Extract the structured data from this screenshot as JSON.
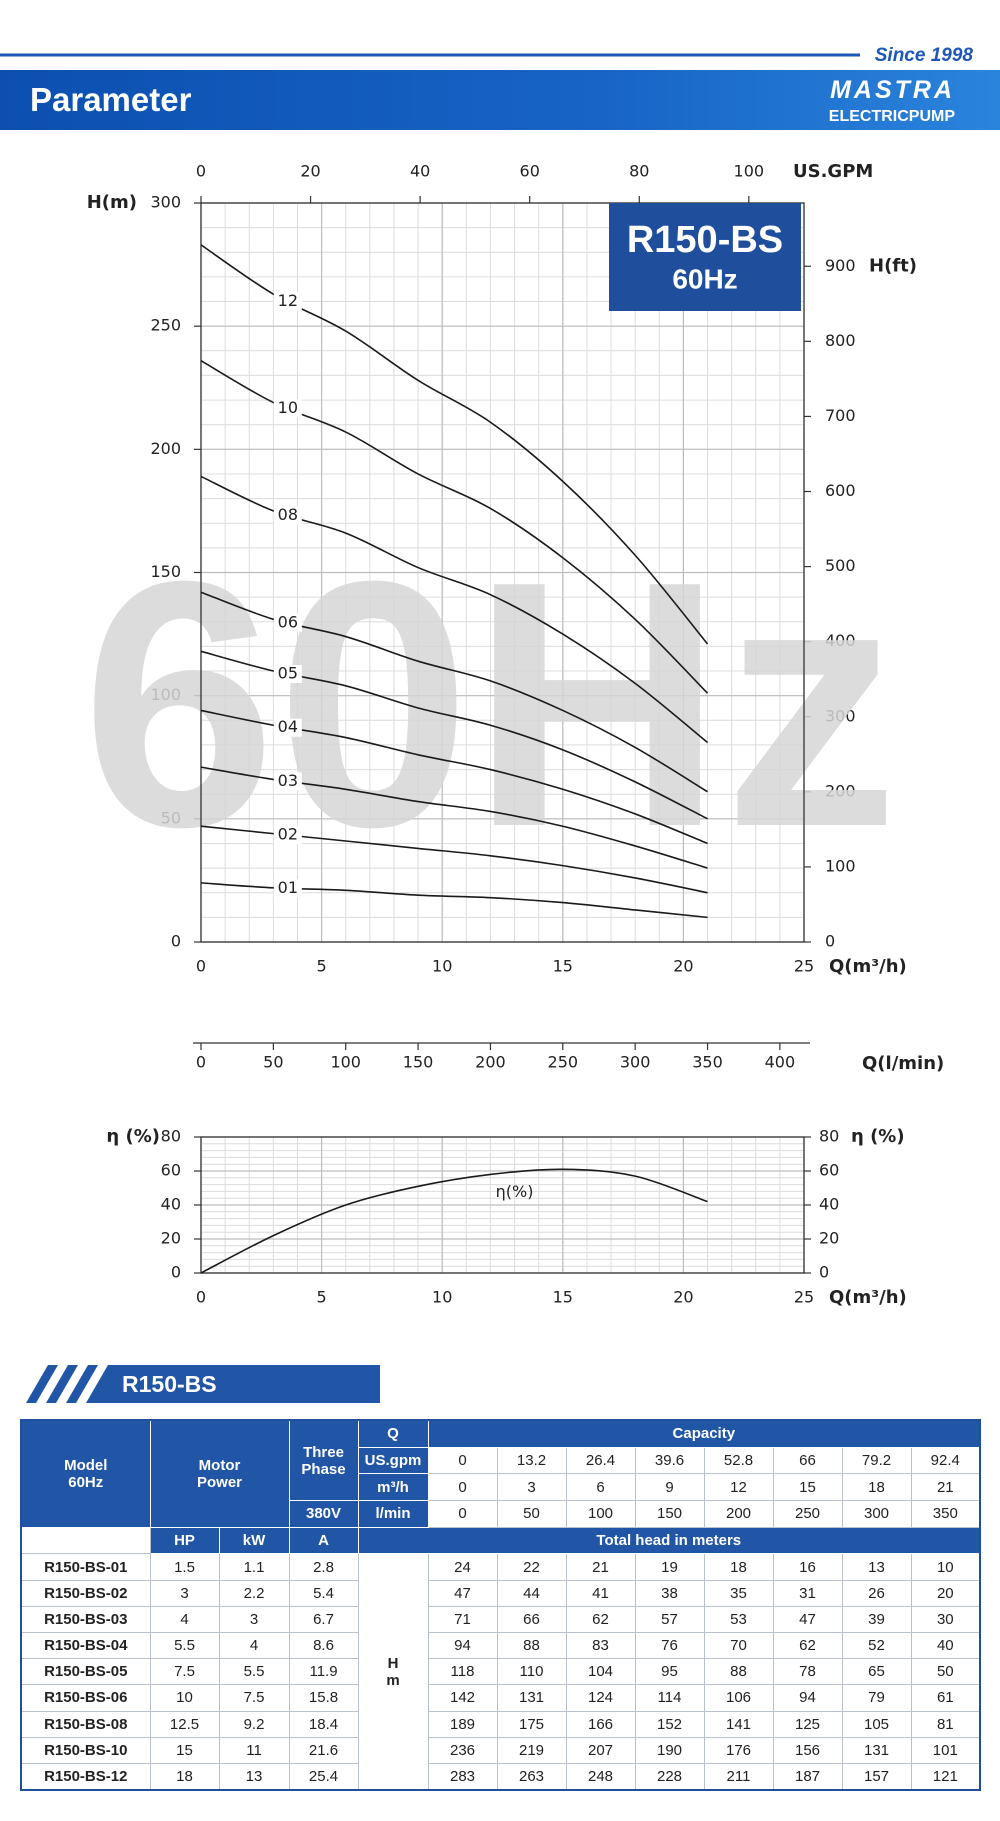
{
  "header": {
    "since": "Since 1998",
    "title": "Parameter",
    "brand": "MASTRA",
    "brand_sub": "ELECTRICPUMP"
  },
  "chart_data": [
    {
      "type": "line",
      "title": "R150-BS",
      "subtitle": "60Hz",
      "watermark": "60Hz",
      "xlabel": "Q(m³/h)",
      "ylabel": "H(m)",
      "y2label": "H(ft)",
      "x": [
        0,
        3,
        6,
        9,
        12,
        15,
        18,
        21
      ],
      "xlim": [
        0,
        25
      ],
      "xticks": [
        0,
        5,
        10,
        15,
        20,
        25
      ],
      "ylim": [
        0,
        300
      ],
      "yticks": [
        0,
        50,
        100,
        150,
        200,
        250,
        300
      ],
      "y2lim": [
        0,
        984.25
      ],
      "y2ticks": [
        0,
        100,
        200,
        300,
        400,
        500,
        600,
        700,
        800,
        900
      ],
      "x2label": "US.GPM",
      "x2lim": [
        0,
        110.07
      ],
      "x2ticks": [
        0,
        20,
        40,
        60,
        80,
        100
      ],
      "x3label": "Q(l/min)",
      "x3lim": [
        0,
        416.67
      ],
      "x3ticks": [
        0,
        50,
        100,
        150,
        200,
        250,
        300,
        350,
        400
      ],
      "grid": true,
      "series": [
        {
          "name": "01",
          "color": "#1a1a1a",
          "values": [
            24,
            22,
            21,
            19,
            18,
            16,
            13,
            10
          ]
        },
        {
          "name": "02",
          "color": "#1a1a1a",
          "values": [
            47,
            44,
            41,
            38,
            35,
            31,
            26,
            20
          ]
        },
        {
          "name": "03",
          "color": "#1a1a1a",
          "values": [
            71,
            66,
            62,
            57,
            53,
            47,
            39,
            30
          ]
        },
        {
          "name": "04",
          "color": "#1a1a1a",
          "values": [
            94,
            88,
            83,
            76,
            70,
            62,
            52,
            40
          ]
        },
        {
          "name": "05",
          "color": "#1a1a1a",
          "values": [
            118,
            110,
            104,
            95,
            88,
            78,
            65,
            50
          ]
        },
        {
          "name": "06",
          "color": "#1a1a1a",
          "values": [
            142,
            131,
            124,
            114,
            106,
            94,
            79,
            61
          ]
        },
        {
          "name": "08",
          "color": "#1a1a1a",
          "values": [
            189,
            175,
            166,
            152,
            141,
            125,
            105,
            81
          ]
        },
        {
          "name": "10",
          "color": "#1a1a1a",
          "values": [
            236,
            219,
            207,
            190,
            176,
            156,
            131,
            101
          ]
        },
        {
          "name": "12",
          "color": "#1a1a1a",
          "values": [
            283,
            263,
            248,
            228,
            211,
            187,
            157,
            121
          ]
        }
      ]
    },
    {
      "type": "line",
      "xlabel": "Q(m³/h)",
      "ylabel": "η (%)",
      "y2label": "η (%)",
      "x": [
        0,
        3,
        6,
        9,
        12,
        15,
        18,
        21
      ],
      "xlim": [
        0,
        25
      ],
      "xticks": [
        0,
        5,
        10,
        15,
        20,
        25
      ],
      "ylim": [
        0,
        80
      ],
      "yticks": [
        0,
        20,
        40,
        60,
        80
      ],
      "y2lim": [
        0,
        80
      ],
      "y2ticks": [
        0,
        20,
        40,
        60,
        80
      ],
      "grid": true,
      "series": [
        {
          "name": "η(%)",
          "color": "#1a1a1a",
          "values": [
            0,
            22,
            40,
            51,
            58,
            61,
            57,
            42
          ]
        }
      ]
    }
  ],
  "table": {
    "title": "R150-BS",
    "head": {
      "model": "Model",
      "hz": "60Hz",
      "motor": "Motor",
      "power": "Power",
      "three": "Three",
      "phase": "Phase",
      "volt": "380V",
      "q": "Q",
      "capacity": "Capacity",
      "gpm": "US.gpm",
      "m3h": "m³/h",
      "lmin": "l/min",
      "hp": "HP",
      "kw": "kW",
      "a": "A",
      "total": "Total head in meters",
      "h": "H",
      "m": "m"
    },
    "gpm": [
      0,
      13.2,
      26.4,
      39.6,
      52.8,
      66,
      79.2,
      92.4
    ],
    "m3h": [
      0,
      3,
      6,
      9,
      12,
      15,
      18,
      21
    ],
    "lmin": [
      0,
      50,
      100,
      150,
      200,
      250,
      300,
      350
    ],
    "rows": [
      [
        "R150-BS-01",
        1.5,
        1.1,
        2.8,
        24,
        22,
        21,
        19,
        18,
        16,
        13,
        10
      ],
      [
        "R150-BS-02",
        3,
        2.2,
        5.4,
        47,
        44,
        41,
        38,
        35,
        31,
        26,
        20
      ],
      [
        "R150-BS-03",
        4,
        3,
        6.7,
        71,
        66,
        62,
        57,
        53,
        47,
        39,
        30
      ],
      [
        "R150-BS-04",
        5.5,
        4,
        8.6,
        94,
        88,
        83,
        76,
        70,
        62,
        52,
        40
      ],
      [
        "R150-BS-05",
        7.5,
        5.5,
        11.9,
        118,
        110,
        104,
        95,
        88,
        78,
        65,
        50
      ],
      [
        "R150-BS-06",
        10,
        7.5,
        15.8,
        142,
        131,
        124,
        114,
        106,
        94,
        79,
        61
      ],
      [
        "R150-BS-08",
        12.5,
        9.2,
        18.4,
        189,
        175,
        166,
        152,
        141,
        125,
        105,
        81
      ],
      [
        "R150-BS-10",
        15,
        11,
        21.6,
        236,
        219,
        207,
        190,
        176,
        156,
        131,
        101
      ],
      [
        "R150-BS-12",
        18,
        13,
        25.4,
        283,
        263,
        248,
        228,
        211,
        187,
        157,
        121
      ]
    ]
  }
}
